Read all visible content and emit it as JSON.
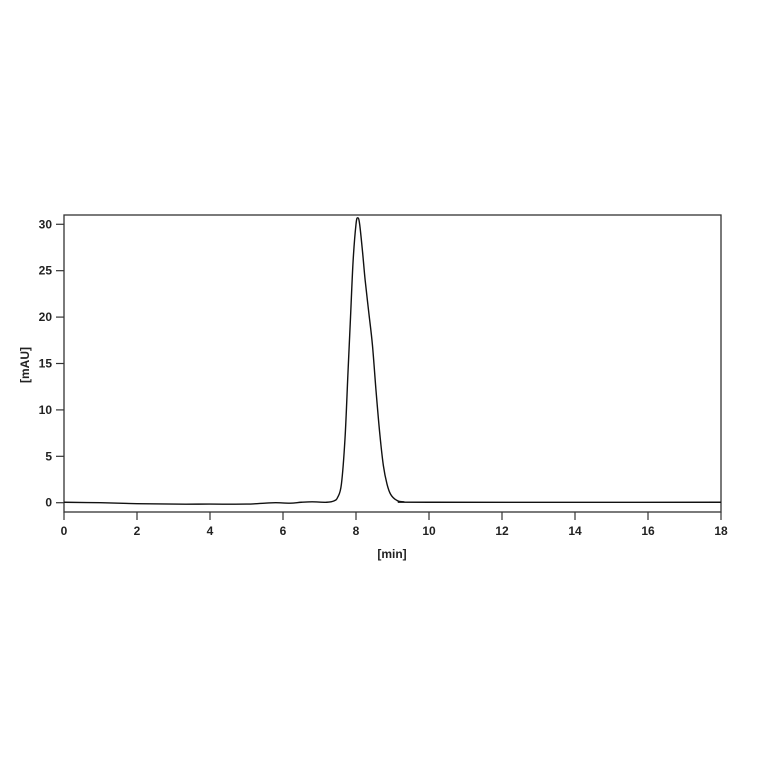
{
  "chart_data": {
    "type": "line",
    "title": "",
    "xlabel": "[min]",
    "ylabel": "[mAU]",
    "xlim": [
      0,
      18
    ],
    "ylim": [
      -1,
      31
    ],
    "x_ticks": [
      0,
      2,
      4,
      6,
      8,
      10,
      12,
      14,
      16,
      18
    ],
    "y_ticks": [
      0,
      5,
      10,
      15,
      20,
      25,
      30
    ],
    "grid": false,
    "line_color": "#111111",
    "series": [
      {
        "x": [
          0,
          1,
          2,
          3,
          4,
          5,
          5.5,
          5.8,
          6.2,
          6.5,
          6.8,
          7.2,
          7.4,
          7.5,
          7.6,
          7.7,
          7.78,
          7.85,
          7.92,
          8.0,
          8.05,
          8.1,
          8.18,
          8.25,
          8.35,
          8.45,
          8.55,
          8.65,
          8.75,
          8.85,
          8.95,
          9.1,
          9.3,
          10,
          18
        ],
        "y": [
          0.05,
          0.0,
          -0.1,
          -0.15,
          -0.15,
          -0.15,
          -0.05,
          0.0,
          -0.05,
          0.05,
          0.1,
          0.05,
          0.2,
          0.6,
          2,
          7,
          14,
          20,
          26,
          30,
          30.7,
          30,
          27,
          24,
          20.5,
          17,
          12,
          7.5,
          4,
          2,
          0.9,
          0.3,
          0.1,
          0.05,
          0.05
        ]
      }
    ]
  }
}
